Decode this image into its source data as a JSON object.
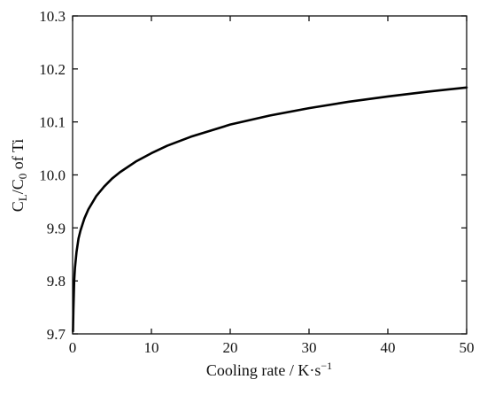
{
  "chart_data": {
    "type": "line",
    "title": "",
    "xlabel": {
      "main": "Cooling rate / K·s",
      "superscript": "−1"
    },
    "ylabel": {
      "c1": "C",
      "c1_sub": "L",
      "slash": "/C",
      "c2_sub": "0",
      "rest": " of Ti"
    },
    "xlim": [
      0,
      50
    ],
    "ylim": [
      9.7,
      10.3
    ],
    "x_ticks": [
      0,
      10,
      20,
      30,
      40,
      50
    ],
    "x_tick_labels": [
      "0",
      "10",
      "20",
      "30",
      "40",
      "50"
    ],
    "y_ticks": [
      9.7,
      9.8,
      9.9,
      10.0,
      10.1,
      10.2,
      10.3
    ],
    "y_tick_labels": [
      "9.7",
      "9.8",
      "9.9",
      "10.0",
      "10.1",
      "10.2",
      "10.3"
    ],
    "grid": false,
    "series": [
      {
        "color": "#000000",
        "x": [
          0.05,
          0.1,
          0.2,
          0.3,
          0.5,
          0.75,
          1,
          1.5,
          2,
          3,
          4,
          5,
          6,
          8,
          10,
          12,
          15,
          20,
          25,
          30,
          35,
          40,
          45,
          50
        ],
        "y": [
          9.705,
          9.745,
          9.8,
          9.825,
          9.855,
          9.88,
          9.895,
          9.918,
          9.935,
          9.96,
          9.978,
          9.993,
          10.005,
          10.025,
          10.041,
          10.055,
          10.072,
          10.095,
          10.112,
          10.126,
          10.138,
          10.148,
          10.157,
          10.165
        ]
      }
    ]
  }
}
